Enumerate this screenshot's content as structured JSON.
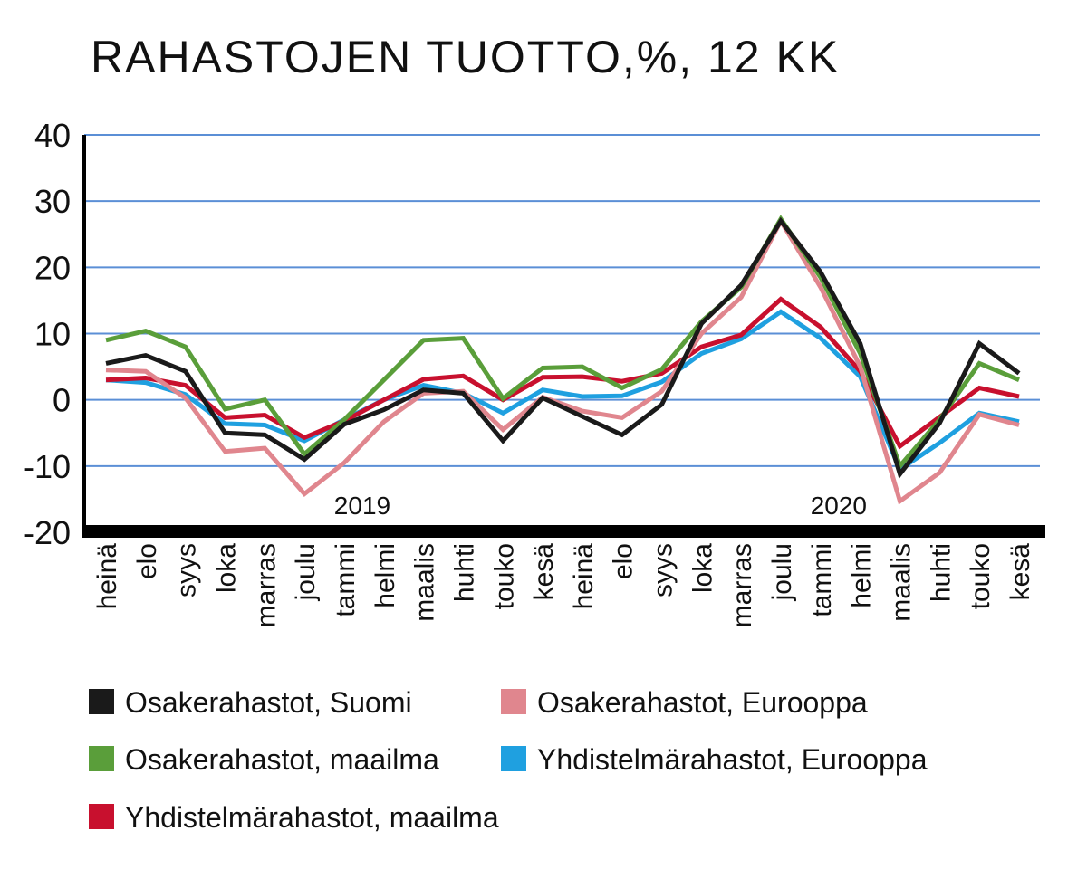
{
  "chart_data": {
    "type": "line",
    "title": "RAHASTOJEN TUOTTO,%, 12 KK",
    "categories": [
      "heinä",
      "elo",
      "syys",
      "loka",
      "marras",
      "joulu",
      "tammi",
      "helmi",
      "maalis",
      "huhti",
      "touko",
      "kesä",
      "heinä",
      "elo",
      "syys",
      "loka",
      "marras",
      "joulu",
      "tammi",
      "helmi",
      "maalis",
      "huhti",
      "touko",
      "kesä"
    ],
    "year_labels": [
      {
        "text": "2019",
        "at_index": 6
      },
      {
        "text": "2020",
        "at_index": 18
      }
    ],
    "ylim": [
      -20,
      40
    ],
    "yticks": [
      40,
      30,
      20,
      10,
      0,
      -10,
      -20
    ],
    "grid": true,
    "legend_position": "bottom",
    "series": [
      {
        "name": "Osakerahastot, Suomi",
        "color": "#1a1a1a",
        "values": [
          5.5,
          6.7,
          4.3,
          -5,
          -5.3,
          -9,
          -3.7,
          -1.5,
          1.5,
          1,
          -6.2,
          0.3,
          -2.5,
          -5.3,
          -0.7,
          11.5,
          17.3,
          27,
          19.3,
          8.5,
          -11.2,
          -3.5,
          8.5,
          4
        ]
      },
      {
        "name": "Osakerahastot, Eurooppa",
        "color": "#e0868e",
        "values": [
          4.5,
          4.3,
          0.3,
          -7.8,
          -7.3,
          -14.2,
          -9.5,
          -3.3,
          1,
          1.3,
          -4.5,
          0.4,
          -1.7,
          -2.7,
          1.3,
          10,
          15.5,
          27,
          17,
          5,
          -15.3,
          -11,
          -2.2,
          -3.8
        ]
      },
      {
        "name": "Osakerahastot, maailma",
        "color": "#5a9e3a",
        "values": [
          9,
          10.4,
          8,
          -1.4,
          0,
          -8.2,
          -3,
          3,
          9,
          9.3,
          0.2,
          4.8,
          5,
          1.8,
          4.6,
          11.8,
          17,
          27.3,
          18.5,
          7,
          -10,
          -3,
          5.5,
          3
        ]
      },
      {
        "name": "Yhdistelmärahastot, Eurooppa",
        "color": "#1fa0e0",
        "values": [
          3,
          2.6,
          0.8,
          -3.6,
          -3.8,
          -6.2,
          -3,
          0,
          2.2,
          1,
          -2,
          1.5,
          0.5,
          0.6,
          2.7,
          7,
          9.2,
          13.3,
          9.3,
          3.5,
          -10.5,
          -6.5,
          -2,
          -3.3
        ]
      },
      {
        "name": "Yhdistelmärahastot, maailma",
        "color": "#c8102e",
        "values": [
          3,
          3.3,
          2.2,
          -2.7,
          -2.3,
          -5.7,
          -3.2,
          0,
          3.1,
          3.6,
          0,
          3.4,
          3.5,
          2.8,
          4,
          8,
          9.8,
          15.2,
          11,
          4.3,
          -7,
          -2.6,
          1.8,
          0.5
        ]
      }
    ],
    "gridline_color": "#5b8fd6",
    "draw_order": [
      3,
      4,
      1,
      2,
      0
    ]
  }
}
